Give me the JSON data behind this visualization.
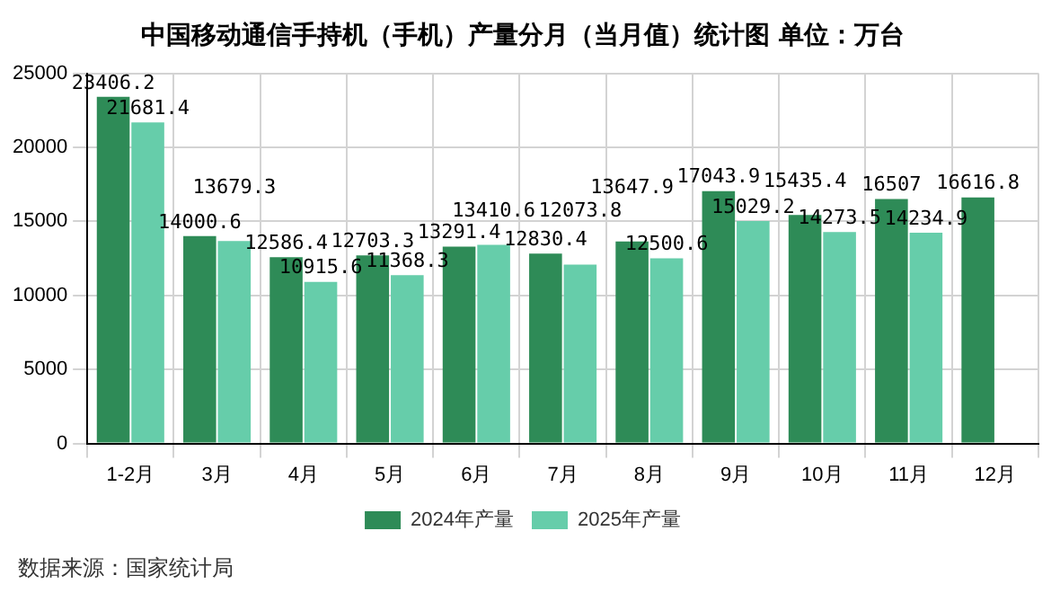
{
  "chart_data": {
    "type": "bar",
    "title": "中国移动通信手持机（手机）产量分月（当月值）统计图 单位：万台",
    "categories": [
      "1-2月",
      "3月",
      "4月",
      "5月",
      "6月",
      "7月",
      "8月",
      "9月",
      "10月",
      "11月",
      "12月"
    ],
    "series": [
      {
        "name": "2024年产量",
        "color": "#2e8b57",
        "values": [
          23406.2,
          14000.6,
          12586.4,
          12703.3,
          13291.4,
          12830.4,
          13647.9,
          17043.9,
          15435.4,
          16507,
          16616.8
        ]
      },
      {
        "name": "2025年产量",
        "color": "#66cdaa",
        "values": [
          21681.4,
          13679.3,
          10915.6,
          11368.3,
          13410.6,
          12073.8,
          12500.6,
          15029.2,
          14273.5,
          14234.9,
          null
        ]
      }
    ],
    "ylim": [
      0,
      25000
    ],
    "yticks": [
      0,
      5000,
      10000,
      15000,
      20000,
      25000
    ],
    "grid": true,
    "legend": "bottom",
    "data_labels": true,
    "annotations": [
      "数据来源：国家统计局"
    ]
  }
}
